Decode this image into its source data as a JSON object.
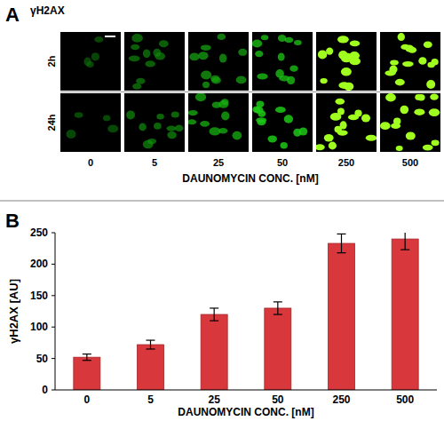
{
  "chart_data": {
    "type": "bar",
    "panel_label": "B",
    "x_label": "DAUNOMYCIN CONC. [nM]",
    "y_label": "γH2AX  [AU]",
    "categories": [
      "0",
      "5",
      "25",
      "50",
      "250",
      "500"
    ],
    "values": [
      52,
      72,
      120,
      130,
      233,
      240
    ],
    "errors": [
      5,
      7,
      10,
      10,
      15,
      17
    ],
    "color": "#d8383c",
    "ylim": [
      0,
      250
    ],
    "yticks": [
      0,
      50,
      100,
      150,
      200,
      250
    ],
    "grid": false
  },
  "panel_a": {
    "label": "A",
    "title": "γH2AX",
    "rows": [
      "2h",
      "24h"
    ],
    "columns": [
      "0",
      "5",
      "25",
      "50",
      "250",
      "500"
    ],
    "x_label": "DAUNOMYCIN CONC. [nM]"
  }
}
